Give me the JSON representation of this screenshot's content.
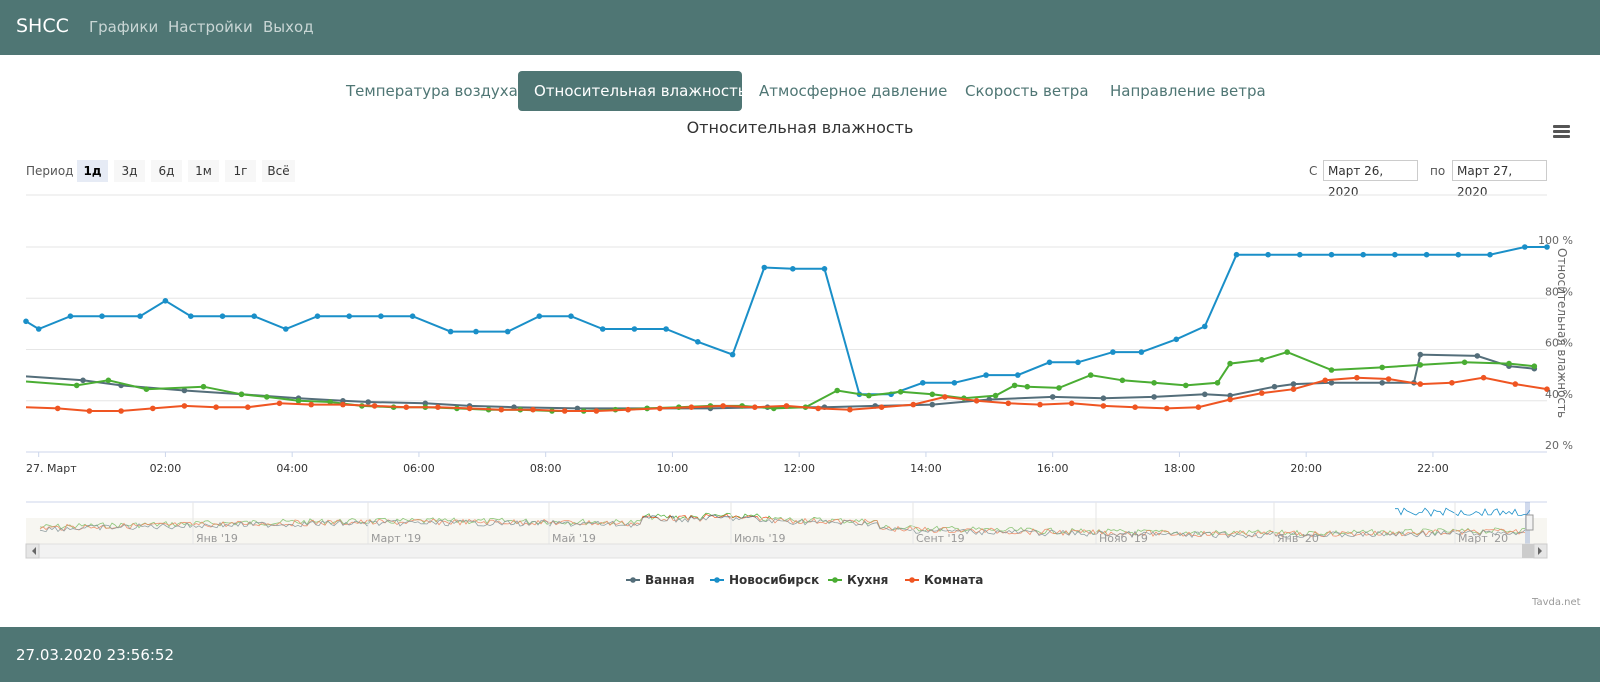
{
  "header": {
    "brand": "SHCC",
    "nav": [
      "Графики",
      "Настройки",
      "Выход"
    ]
  },
  "tabs": [
    {
      "label": "Температура воздуха",
      "active": false
    },
    {
      "label": "Относительная влажность",
      "active": true
    },
    {
      "label": "Атмосферное давление",
      "active": false
    },
    {
      "label": "Скорость ветра",
      "active": false
    },
    {
      "label": "Направление ветра",
      "active": false
    }
  ],
  "range_selector": {
    "label": "Период",
    "buttons": [
      "1д",
      "3д",
      "6д",
      "1м",
      "1г",
      "Всё"
    ],
    "selected": "1д",
    "from_label": "С",
    "from_value": "Март 26, 2020",
    "to_label": "по",
    "to_value": "Март 27, 2020"
  },
  "menu_icon": "hamburger-icon",
  "footer": {
    "datetime": "27.03.2020 23:56:52"
  },
  "credit": "Tavda.net",
  "colors": {
    "header_bg": "#4f7674",
    "Ванная": "#546e7a",
    "Новосибирск": "#1a8fc8",
    "Кухня": "#4aad33",
    "Комната": "#ef5522"
  },
  "chart_data": {
    "type": "line",
    "title": "Относительная влажность",
    "ylabel": "Относительная влажность",
    "y_unit": "%",
    "ylim": [
      20,
      100
    ],
    "y_ticks": [
      20,
      40,
      60,
      80,
      100
    ],
    "xlim_hours": [
      -0.2,
      23.8
    ],
    "x_tick_labels": [
      "27. Март",
      "02:00",
      "04:00",
      "06:00",
      "08:00",
      "10:00",
      "12:00",
      "14:00",
      "16:00",
      "18:00",
      "20:00",
      "22:00"
    ],
    "x_tick_hours": [
      0,
      2,
      4,
      6,
      8,
      10,
      12,
      14,
      16,
      18,
      20,
      22
    ],
    "grid": true,
    "legend_position": "bottom-center",
    "series": [
      {
        "name": "Ванная",
        "x": [
          -0.2,
          0.7,
          1.3,
          2.3,
          3.2,
          4.1,
          4.8,
          5.2,
          6.1,
          6.8,
          7.5,
          8.5,
          9.6,
          10.6,
          11.5,
          12.4,
          13.2,
          14.1,
          15.0,
          16.0,
          16.8,
          17.6,
          18.4,
          18.8,
          19.5,
          19.8,
          20.4,
          21.2,
          21.7,
          21.8,
          22.7,
          23.2,
          23.6
        ],
        "y": [
          49.5,
          48,
          46,
          44,
          42.5,
          41,
          40,
          39.5,
          39,
          38,
          37.5,
          37,
          37,
          37,
          37.5,
          37.5,
          38,
          38.5,
          40.5,
          41.5,
          41,
          41.5,
          42.5,
          42,
          45.5,
          46.5,
          47,
          47,
          47,
          58,
          57.5,
          53.5,
          52.5
        ]
      },
      {
        "name": "Новосибирск",
        "x": [
          -0.2,
          0.0,
          0.5,
          1.0,
          1.6,
          2.0,
          2.4,
          2.9,
          3.4,
          3.9,
          4.4,
          4.9,
          5.4,
          5.9,
          6.5,
          6.9,
          7.4,
          7.9,
          8.4,
          8.9,
          9.4,
          9.9,
          10.4,
          10.95,
          11.45,
          11.9,
          12.4,
          12.95,
          13.45,
          13.95,
          14.45,
          14.95,
          15.45,
          15.95,
          16.4,
          16.95,
          17.4,
          17.95,
          18.4,
          18.9,
          19.4,
          19.9,
          20.4,
          20.9,
          21.4,
          21.9,
          22.4,
          22.9,
          23.45,
          23.8
        ],
        "y": [
          71,
          68,
          73,
          73,
          73,
          79,
          73,
          73,
          73,
          68,
          73,
          73,
          73,
          73,
          67,
          67,
          67,
          73,
          73,
          68,
          68,
          68,
          63,
          58,
          92,
          91.5,
          91.5,
          42.5,
          42.5,
          47,
          47,
          50,
          50,
          55,
          55,
          59,
          59,
          64,
          69,
          97,
          97,
          97,
          97,
          97,
          97,
          97,
          97,
          97,
          100,
          100
        ]
      },
      {
        "name": "Кухня",
        "x": [
          -0.2,
          0.6,
          1.1,
          1.7,
          2.6,
          3.2,
          3.6,
          4.1,
          4.6,
          5.1,
          5.6,
          6.1,
          6.6,
          7.1,
          7.6,
          8.1,
          8.6,
          9.1,
          9.6,
          10.1,
          10.6,
          11.1,
          11.6,
          12.1,
          12.6,
          13.1,
          13.6,
          14.1,
          14.6,
          15.1,
          15.4,
          15.6,
          16.1,
          16.6,
          17.1,
          17.6,
          18.1,
          18.6,
          18.8,
          19.3,
          19.7,
          20.4,
          21.2,
          21.8,
          22.5,
          23.2,
          23.6
        ],
        "y": [
          47.5,
          46,
          48,
          44.5,
          45.5,
          42.5,
          41.5,
          40,
          39.5,
          38,
          37.5,
          37.5,
          37,
          36.5,
          36.5,
          36,
          36,
          36.5,
          37,
          37.5,
          38,
          38,
          37,
          37.5,
          44,
          42,
          43.5,
          42.5,
          41,
          42,
          46,
          45.5,
          45,
          50,
          48,
          47,
          46,
          47,
          54.5,
          56,
          59,
          52,
          53,
          54,
          55,
          54.5,
          53.5
        ]
      },
      {
        "name": "Комната",
        "x": [
          -0.2,
          0.3,
          0.8,
          1.3,
          1.8,
          2.3,
          2.8,
          3.3,
          3.8,
          4.3,
          4.8,
          5.3,
          5.8,
          6.3,
          6.8,
          7.3,
          7.8,
          8.3,
          8.8,
          9.3,
          9.8,
          10.3,
          10.8,
          11.3,
          11.8,
          12.3,
          12.8,
          13.3,
          13.8,
          14.3,
          14.8,
          15.3,
          15.8,
          16.3,
          16.8,
          17.3,
          17.8,
          18.3,
          18.8,
          19.3,
          19.8,
          20.3,
          20.8,
          21.3,
          21.8,
          22.3,
          22.8,
          23.3,
          23.8
        ],
        "y": [
          37.5,
          37,
          36,
          36,
          37,
          38,
          37.5,
          37.5,
          39,
          38.5,
          38.5,
          38,
          37.5,
          37.5,
          37,
          36.5,
          36.5,
          36,
          36,
          36.5,
          37,
          37.5,
          38,
          37.5,
          38,
          37,
          36.5,
          37.5,
          38.5,
          41.5,
          40,
          39,
          38.5,
          39,
          38,
          37.5,
          37,
          37.5,
          40.5,
          43,
          44.5,
          48,
          49,
          48.5,
          46.5,
          47,
          49,
          46.5,
          44.5
        ]
      }
    ],
    "navigator": {
      "x_tick_labels": [
        "Янв '19",
        "Март '19",
        "Май '19",
        "Июль '19",
        "Сент '19",
        "Нояб '19",
        "Янв '20",
        "Март '20"
      ]
    }
  }
}
